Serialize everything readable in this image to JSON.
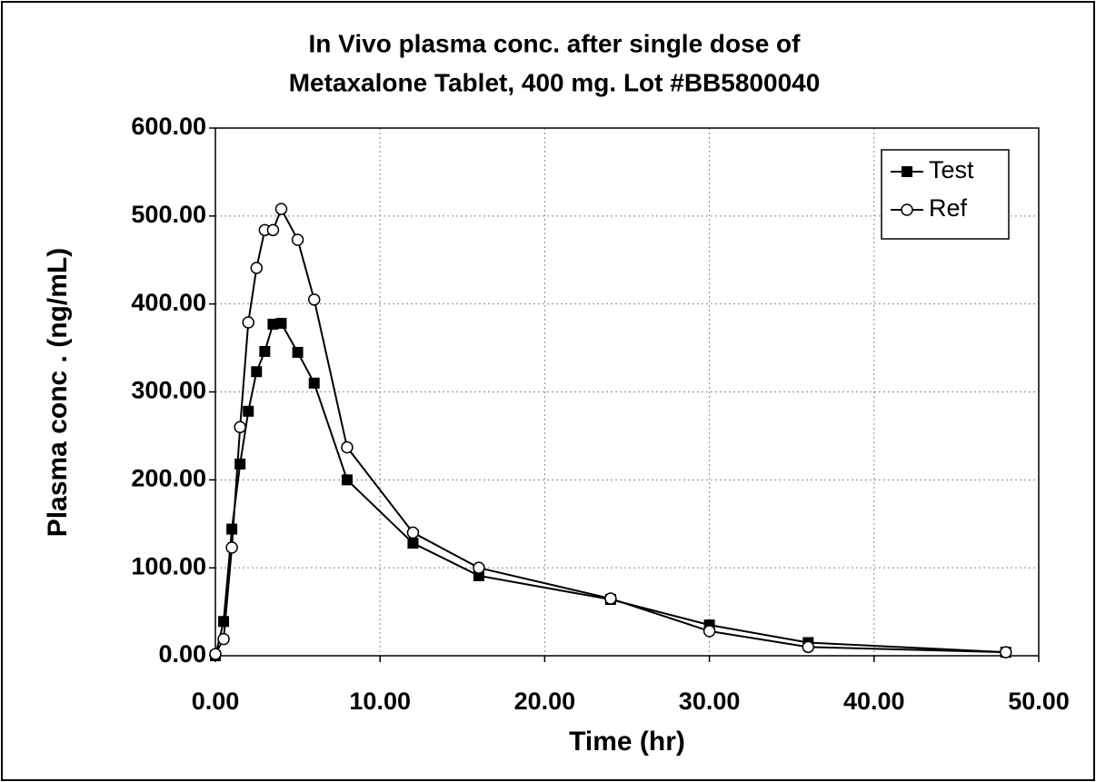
{
  "chart_data": {
    "type": "line",
    "title": [
      "In Vivo plasma conc. after single dose of",
      "Metaxalone Tablet, 400 mg. Lot #BB5800040"
    ],
    "x_label": "Time (hr)",
    "y_label": "Plasma conc . (ng/mL)",
    "xlim": [
      0,
      50
    ],
    "ylim": [
      0,
      600
    ],
    "xticks": [
      {
        "value": 0,
        "label": "0.00"
      },
      {
        "value": 10,
        "label": "10.00"
      },
      {
        "value": 20,
        "label": "20.00"
      },
      {
        "value": 30,
        "label": "30.00"
      },
      {
        "value": 40,
        "label": "40.00"
      },
      {
        "value": 50,
        "label": "50.00"
      }
    ],
    "yticks": [
      {
        "value": 0,
        "label": "0.00"
      },
      {
        "value": 100,
        "label": "100.00"
      },
      {
        "value": 200,
        "label": "200.00"
      },
      {
        "value": 300,
        "label": "300.00"
      },
      {
        "value": 400,
        "label": "400.00"
      },
      {
        "value": 500,
        "label": "500.00"
      },
      {
        "value": 600,
        "label": "600.00"
      }
    ],
    "grid": true,
    "legend_position": "top-right",
    "x": [
      0,
      0.5,
      1,
      1.5,
      2,
      2.5,
      3,
      3.5,
      4,
      5,
      6,
      8,
      12,
      16,
      24,
      30,
      36,
      48
    ],
    "series": [
      {
        "name": "Test",
        "color": "#000000",
        "marker": "square",
        "values": [
          0,
          39,
          144,
          218,
          278,
          323,
          346,
          377,
          378,
          345,
          310,
          200,
          128,
          91,
          64,
          35,
          15,
          4
        ]
      },
      {
        "name": "Ref",
        "color": "#000000",
        "marker": "circle",
        "values": [
          2,
          19,
          123,
          260,
          379,
          441,
          484,
          484,
          508,
          473,
          405,
          237,
          140,
          100,
          65,
          28,
          10,
          4
        ]
      }
    ]
  }
}
